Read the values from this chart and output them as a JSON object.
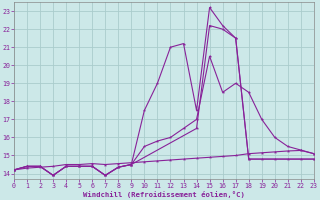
{
  "xlabel": "Windchill (Refroidissement éolien,°C)",
  "bg_color": "#cce8e8",
  "grid_color": "#aacccc",
  "line_color": "#882299",
  "xlim": [
    0,
    23
  ],
  "ylim": [
    13.7,
    23.5
  ],
  "xticks": [
    0,
    1,
    2,
    3,
    4,
    5,
    6,
    7,
    8,
    9,
    10,
    11,
    12,
    13,
    14,
    15,
    16,
    17,
    18,
    19,
    20,
    21,
    22,
    23
  ],
  "yticks": [
    14,
    15,
    16,
    17,
    18,
    19,
    20,
    21,
    22,
    23
  ],
  "lines": [
    {
      "x": [
        0,
        1,
        2,
        3,
        4,
        5,
        6,
        7,
        8,
        9,
        10,
        11,
        12,
        13,
        14,
        15,
        16,
        17,
        18,
        19,
        20,
        21,
        22,
        23
      ],
      "y": [
        14.2,
        14.3,
        14.35,
        14.4,
        14.5,
        14.5,
        14.55,
        14.5,
        14.55,
        14.6,
        14.65,
        14.7,
        14.75,
        14.8,
        14.85,
        14.9,
        14.95,
        15.0,
        15.1,
        15.15,
        15.2,
        15.25,
        15.28,
        15.1
      ]
    },
    {
      "x": [
        0,
        1,
        2,
        3,
        4,
        5,
        6,
        7,
        8,
        9,
        10,
        11,
        12,
        13,
        14,
        15,
        16,
        17,
        18,
        19,
        20,
        21,
        22,
        23
      ],
      "y": [
        14.2,
        14.4,
        14.4,
        13.9,
        14.4,
        14.4,
        14.4,
        13.9,
        14.35,
        14.5,
        15.5,
        15.8,
        16.0,
        16.5,
        17.0,
        20.5,
        18.5,
        19.0,
        18.5,
        17.0,
        16.0,
        15.5,
        15.3,
        15.1
      ]
    },
    {
      "x": [
        0,
        1,
        2,
        3,
        4,
        5,
        6,
        7,
        8,
        9,
        10,
        11,
        12,
        13,
        14,
        15,
        16,
        17,
        18,
        19,
        20,
        21,
        22,
        23
      ],
      "y": [
        14.2,
        14.4,
        14.4,
        13.9,
        14.4,
        14.4,
        14.4,
        13.9,
        14.35,
        14.5,
        17.5,
        19.0,
        21.0,
        21.2,
        17.5,
        23.2,
        22.2,
        21.5,
        14.8,
        14.8,
        14.8,
        14.8,
        14.8,
        14.8
      ]
    },
    {
      "x": [
        0,
        1,
        2,
        3,
        4,
        5,
        6,
        7,
        8,
        9,
        14,
        15,
        16,
        17,
        18,
        23
      ],
      "y": [
        14.2,
        14.4,
        14.4,
        13.9,
        14.4,
        14.4,
        14.4,
        13.9,
        14.35,
        14.5,
        16.5,
        22.2,
        22.0,
        21.5,
        14.8,
        14.8
      ]
    }
  ]
}
